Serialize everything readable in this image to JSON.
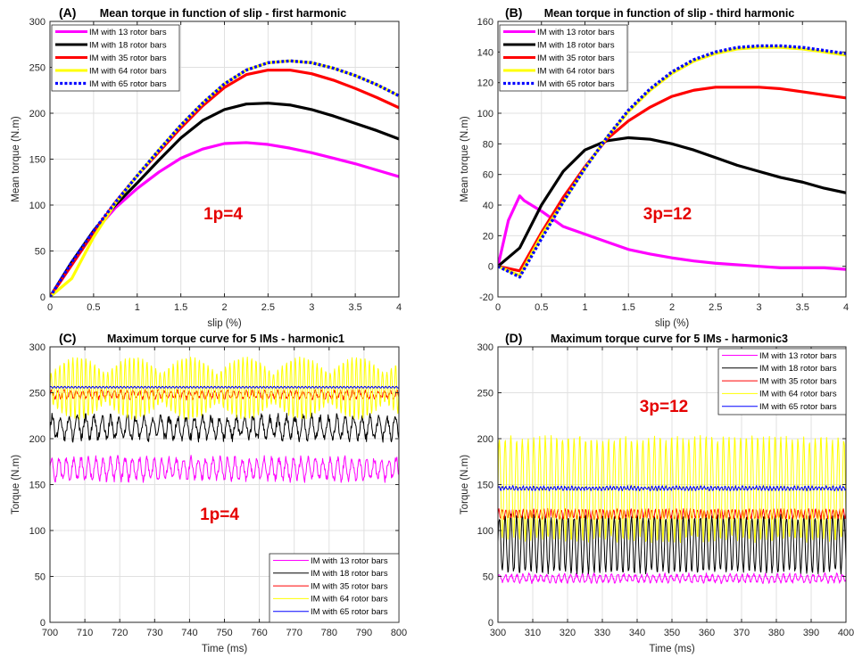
{
  "colors": {
    "magenta": "#ff00ff",
    "black": "#000000",
    "red": "#ff0000",
    "yellow": "#ffff00",
    "blue": "#0000ff",
    "annotation": "#e50000",
    "grid": "#e0e0e0"
  },
  "chart_data": [
    {
      "type": "line",
      "panel_label": "(A)",
      "title": "Mean torque in function of slip - first harmonic",
      "xlabel": "slip (%)",
      "ylabel": "Mean torque (N.m)",
      "xlim": [
        0,
        4
      ],
      "ylim": [
        0,
        300
      ],
      "xticks": [
        "0",
        "0.5",
        "1",
        "1.5",
        "2",
        "2.5",
        "3",
        "3.5",
        "4"
      ],
      "yticks": [
        "0",
        "50",
        "100",
        "150",
        "200",
        "250",
        "300"
      ],
      "grid": true,
      "legend_position": "top-left",
      "annotation": "1p=4",
      "series": [
        {
          "name": "IM with 13 rotor bars",
          "color": "#ff00ff",
          "style": "solid",
          "x": [
            0,
            0.25,
            0.5,
            0.75,
            1,
            1.25,
            1.5,
            1.75,
            2,
            2.25,
            2.5,
            2.75,
            3,
            3.25,
            3.5,
            3.75,
            4
          ],
          "y": [
            0,
            35,
            70,
            97,
            118,
            136,
            151,
            161,
            167,
            168,
            166,
            162,
            157,
            151,
            145,
            138,
            131
          ]
        },
        {
          "name": "IM with 18 rotor bars",
          "color": "#000000",
          "style": "solid",
          "x": [
            0,
            0.25,
            0.5,
            0.75,
            1,
            1.25,
            1.5,
            1.75,
            2,
            2.25,
            2.5,
            2.75,
            3,
            3.25,
            3.5,
            3.75,
            4
          ],
          "y": [
            0,
            38,
            72,
            100,
            124,
            149,
            173,
            192,
            204,
            210,
            211,
            209,
            204,
            197,
            189,
            181,
            172
          ]
        },
        {
          "name": "IM with 35 rotor bars",
          "color": "#ff0000",
          "style": "solid",
          "x": [
            0,
            0.25,
            0.5,
            0.75,
            1,
            1.25,
            1.5,
            1.75,
            2,
            2.25,
            2.5,
            2.75,
            3,
            3.25,
            3.5,
            3.75,
            4
          ],
          "y": [
            0,
            35,
            70,
            103,
            132,
            158,
            184,
            208,
            228,
            242,
            247,
            247,
            243,
            236,
            227,
            217,
            206
          ]
        },
        {
          "name": "IM with 64 rotor bars",
          "color": "#ffff00",
          "style": "solid",
          "x": [
            0,
            0.25,
            0.5,
            0.75,
            1,
            1.25,
            1.5,
            1.75,
            2,
            2.25,
            2.5,
            2.75,
            3,
            3.25,
            3.5,
            3.75,
            4
          ],
          "y": [
            0,
            20,
            65,
            102,
            132,
            160,
            187,
            211,
            232,
            247,
            255,
            257,
            255,
            249,
            241,
            231,
            219
          ]
        },
        {
          "name": "IM with 65 rotor bars",
          "color": "#0000ff",
          "style": "dotted",
          "x": [
            0,
            0.25,
            0.5,
            0.75,
            1,
            1.25,
            1.5,
            1.75,
            2,
            2.25,
            2.5,
            2.75,
            3,
            3.25,
            3.5,
            3.75,
            4
          ],
          "y": [
            0,
            38,
            72,
            103,
            132,
            160,
            187,
            211,
            232,
            247,
            255,
            257,
            255,
            249,
            241,
            231,
            219
          ]
        }
      ]
    },
    {
      "type": "line",
      "panel_label": "(B)",
      "title": "Mean torque in function of slip - third harmonic",
      "xlabel": "slip (%)",
      "ylabel": "Mean torque (N.m)",
      "xlim": [
        0,
        4
      ],
      "ylim": [
        -20,
        160
      ],
      "xticks": [
        "0",
        "0.5",
        "1",
        "1.5",
        "2",
        "2.5",
        "3",
        "3.5",
        "4"
      ],
      "yticks": [
        "-20",
        "0",
        "20",
        "40",
        "60",
        "80",
        "100",
        "120",
        "140",
        "160"
      ],
      "grid": true,
      "legend_position": "top-left",
      "annotation": "3p=12",
      "series": [
        {
          "name": "IM with 13 rotor bars",
          "color": "#ff00ff",
          "style": "solid",
          "x": [
            0,
            0.12,
            0.25,
            0.3,
            0.5,
            0.75,
            1,
            1.25,
            1.5,
            1.75,
            2,
            2.25,
            2.5,
            2.75,
            3,
            3.25,
            3.5,
            3.75,
            4
          ],
          "y": [
            0,
            30,
            46,
            43,
            36,
            26,
            21,
            16,
            11,
            8,
            5.5,
            3.5,
            2,
            1,
            0,
            -1,
            -1,
            -1,
            -2
          ]
        },
        {
          "name": "IM with 18 rotor bars",
          "color": "#000000",
          "style": "solid",
          "x": [
            0,
            0.25,
            0.5,
            0.75,
            1,
            1.25,
            1.5,
            1.75,
            2,
            2.25,
            2.5,
            2.75,
            3,
            3.25,
            3.5,
            3.75,
            4
          ],
          "y": [
            0,
            12,
            40,
            62,
            76,
            82,
            84,
            83,
            80,
            76,
            71,
            66,
            62,
            58,
            55,
            51,
            48
          ]
        },
        {
          "name": "IM with 35 rotor bars",
          "color": "#ff0000",
          "style": "solid",
          "x": [
            0,
            0.25,
            0.5,
            0.75,
            1,
            1.25,
            1.5,
            1.75,
            2,
            2.25,
            2.5,
            2.75,
            3,
            3.25,
            3.5,
            3.75,
            4
          ],
          "y": [
            0,
            -3,
            22,
            45,
            65,
            83,
            95,
            104,
            111,
            115,
            117,
            117,
            117,
            116,
            114,
            112,
            110
          ]
        },
        {
          "name": "IM with 64 rotor bars",
          "color": "#ffff00",
          "style": "solid",
          "x": [
            0,
            0.25,
            0.5,
            0.75,
            1,
            1.25,
            1.5,
            1.75,
            2,
            2.25,
            2.5,
            2.75,
            3,
            3.25,
            3.5,
            3.75,
            4
          ],
          "y": [
            0,
            -6,
            20,
            42,
            64,
            84,
            101,
            115,
            126,
            134,
            139,
            142,
            143,
            143,
            142,
            140,
            138
          ]
        },
        {
          "name": "IM with 65 rotor bars",
          "color": "#0000ff",
          "style": "dotted",
          "x": [
            0,
            0.25,
            0.5,
            0.75,
            1,
            1.25,
            1.5,
            1.75,
            2,
            2.25,
            2.5,
            2.75,
            3,
            3.25,
            3.5,
            3.75,
            4
          ],
          "y": [
            0,
            -7,
            18,
            42,
            64,
            84,
            102,
            116,
            127,
            135,
            140,
            143,
            144,
            144,
            143,
            141,
            139
          ]
        }
      ]
    },
    {
      "type": "line",
      "panel_label": "(C)",
      "title": "Maximum torque curve for 5 IMs - harmonic1",
      "xlabel": "Time (ms)",
      "ylabel": "Torque (N.m)",
      "xlim": [
        700,
        800
      ],
      "ylim": [
        0,
        300
      ],
      "xticks": [
        "700",
        "710",
        "720",
        "730",
        "740",
        "750",
        "760",
        "770",
        "780",
        "790",
        "800"
      ],
      "yticks": [
        "0",
        "50",
        "100",
        "150",
        "200",
        "250",
        "300"
      ],
      "grid": true,
      "legend_position": "bottom-right",
      "annotation": "1p=4",
      "series": [
        {
          "name": "IM with 13 rotor bars",
          "color": "#ff00ff",
          "mean": 167,
          "amplitude": 11,
          "period": 2.1,
          "envelope_period": 0,
          "noise": 4
        },
        {
          "name": "IM with 18 rotor bars",
          "color": "#000000",
          "mean": 212,
          "amplitude": 11,
          "period": 2.4,
          "envelope_period": 0,
          "noise": 5
        },
        {
          "name": "IM with 35 rotor bars",
          "color": "#ff0000",
          "mean": 248,
          "amplitude": 4,
          "period": 1.8,
          "envelope_period": 0,
          "noise": 2
        },
        {
          "name": "IM with 64 rotor bars",
          "color": "#ffff00",
          "mean": 255,
          "amplitude": 34,
          "period": 1.25,
          "envelope_period": 16,
          "noise": 0
        },
        {
          "name": "IM with 65 rotor bars",
          "color": "#0000ff",
          "mean": 256,
          "amplitude": 1,
          "period": 1.0,
          "envelope_period": 0,
          "noise": 0
        }
      ]
    },
    {
      "type": "line",
      "panel_label": "(D)",
      "title": "Maximum torque curve for 5 IMs - harmonic3",
      "xlabel": "Time (ms)",
      "ylabel": "Torque (N.m)",
      "xlim": [
        300,
        400
      ],
      "ylim": [
        0,
        300
      ],
      "xticks": [
        "300",
        "310",
        "320",
        "330",
        "340",
        "350",
        "360",
        "370",
        "380",
        "390",
        "400"
      ],
      "yticks": [
        "0",
        "50",
        "100",
        "150",
        "200",
        "250",
        "300"
      ],
      "grid": true,
      "legend_position": "top-right",
      "annotation": "3p=12",
      "series": [
        {
          "name": "IM with 13 rotor bars",
          "color": "#ff00ff",
          "mean": 48,
          "amplitude": 4,
          "period": 1.7,
          "envelope_period": 0,
          "noise": 2
        },
        {
          "name": "IM with 18 rotor bars",
          "color": "#000000",
          "mean": 85,
          "amplitude": 30,
          "period": 1.65,
          "envelope_period": 0,
          "noise": 3
        },
        {
          "name": "IM with 35 rotor bars",
          "color": "#ff0000",
          "mean": 118,
          "amplitude": 5,
          "period": 1.0,
          "envelope_period": 0,
          "noise": 1
        },
        {
          "name": "IM with 64 rotor bars",
          "color": "#ffff00",
          "mean": 145,
          "amplitude": 55,
          "period": 1.65,
          "envelope_period": 0,
          "noise": 4
        },
        {
          "name": "IM with 65 rotor bars",
          "color": "#0000ff",
          "mean": 146,
          "amplitude": 2,
          "period": 1.0,
          "envelope_period": 0,
          "noise": 1
        }
      ]
    }
  ]
}
